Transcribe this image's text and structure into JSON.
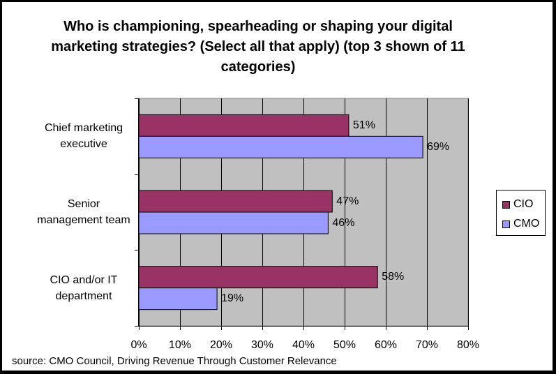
{
  "chart_data": {
    "type": "bar",
    "orientation": "horizontal",
    "title": "Who is championing, spearheading or shaping your digital marketing strategies? (Select all that apply) (top 3 shown of 11 categories)",
    "categories": [
      "Chief marketing executive",
      "Senior management team",
      "CIO and/or IT department"
    ],
    "series": [
      {
        "name": "CIO",
        "values": [
          51,
          47,
          58
        ],
        "labels": [
          "51%",
          "47%",
          "58%"
        ],
        "color": "#993366"
      },
      {
        "name": "CMO",
        "values": [
          69,
          46,
          19
        ],
        "labels": [
          "69%",
          "46%",
          "19%"
        ],
        "color": "#9999ff"
      }
    ],
    "xlim": [
      0,
      80
    ],
    "xticks": [
      "0%",
      "10%",
      "20%",
      "30%",
      "40%",
      "50%",
      "60%",
      "70%",
      "80%"
    ],
    "grid": true,
    "plot_background": "#c0c0c0",
    "legend_position": "right",
    "source": "source: CMO Council, Driving Revenue Through Customer Relevance"
  },
  "category_lines": [
    [
      "Chief marketing",
      "executive"
    ],
    [
      "Senior",
      "management team"
    ],
    [
      "CIO and/or IT",
      "department"
    ]
  ]
}
